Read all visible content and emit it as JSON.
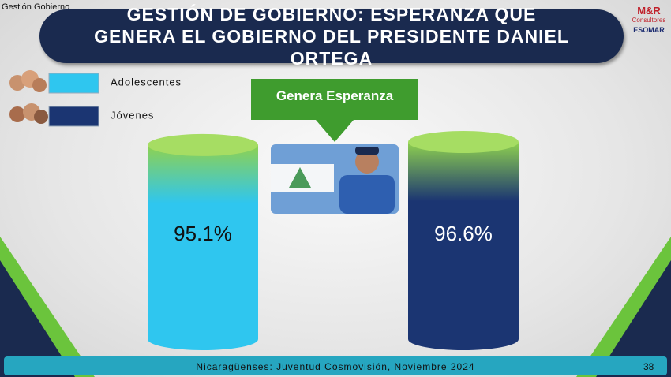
{
  "header": {
    "section": "Gestión Gobierno",
    "logo": {
      "brand": "M&R",
      "sub": "Consultores",
      "assoc": "ESOMAR"
    }
  },
  "chart_data": {
    "type": "bar",
    "title": "GESTIÓN DE GOBIERNO: ESPERANZA QUE GENERA EL GOBIERNO DEL PRESIDENTE DANIEL ORTEGA",
    "annotation": "Genera Esperanza",
    "series": [
      {
        "name": "Adolescentes",
        "color": "#2fc6ef",
        "values": [
          95.1
        ],
        "value_labels": [
          "95.1%"
        ]
      },
      {
        "name": "Jóvenes",
        "color": "#1b3572",
        "values": [
          96.6
        ],
        "value_labels": [
          "96.6%"
        ]
      }
    ]
  },
  "footer": {
    "source": "Nicaragüenses: Juventud Cosmovisión, Noviembre 2024",
    "page": "38"
  }
}
